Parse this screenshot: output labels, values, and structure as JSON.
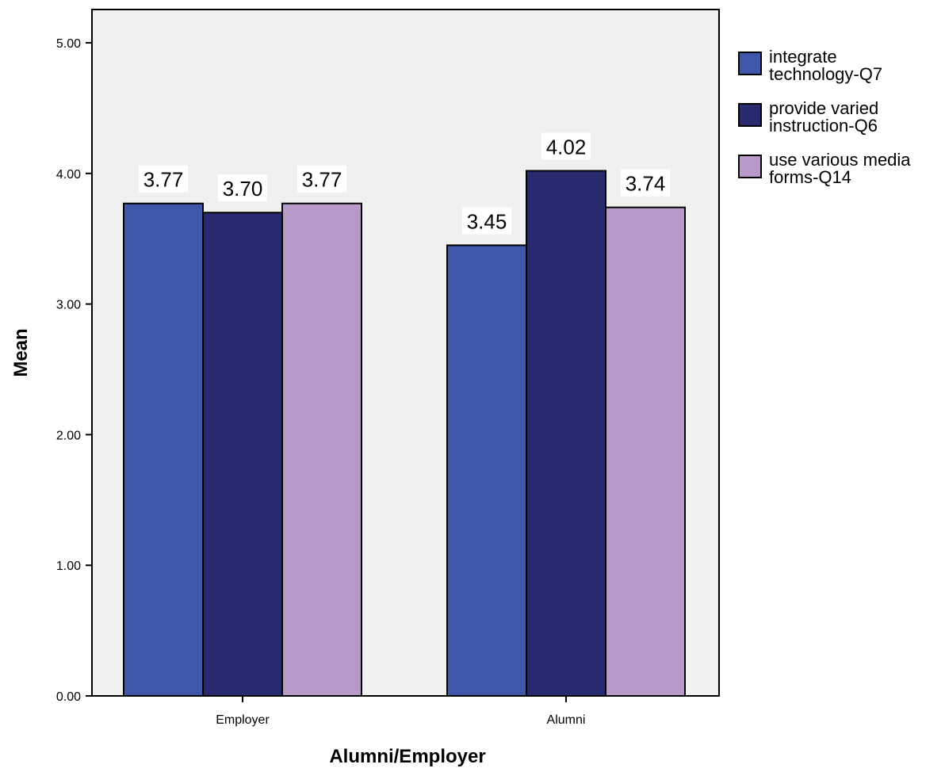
{
  "chart_data": {
    "type": "bar",
    "title": "",
    "xlabel": "Alumni/Employer",
    "ylabel": "Mean",
    "ylim": [
      0,
      5
    ],
    "yticks": [
      "0.00",
      "1.00",
      "2.00",
      "3.00",
      "4.00",
      "5.00"
    ],
    "categories": [
      "Employer",
      "Alumni"
    ],
    "series": [
      {
        "name": "integrate technology-Q7",
        "legend_lines": [
          "integrate",
          "technology-Q7"
        ],
        "color": "#3f57a8",
        "values": [
          3.77,
          3.45
        ],
        "labels": [
          "3.77",
          "3.45"
        ]
      },
      {
        "name": "provide varied instruction-Q6",
        "legend_lines": [
          "provide varied",
          "instruction-Q6"
        ],
        "color": "#292a70",
        "values": [
          3.7,
          4.02
        ],
        "labels": [
          "3.70",
          "4.02"
        ]
      },
      {
        "name": "use various media forms-Q14",
        "legend_lines": [
          "use various media",
          "forms-Q14"
        ],
        "color": "#b89ac8",
        "values": [
          3.77,
          3.74
        ],
        "labels": [
          "3.77",
          "3.74"
        ]
      }
    ],
    "grid": false,
    "legend_position": "right",
    "plot_background": "#f0f0f0"
  }
}
